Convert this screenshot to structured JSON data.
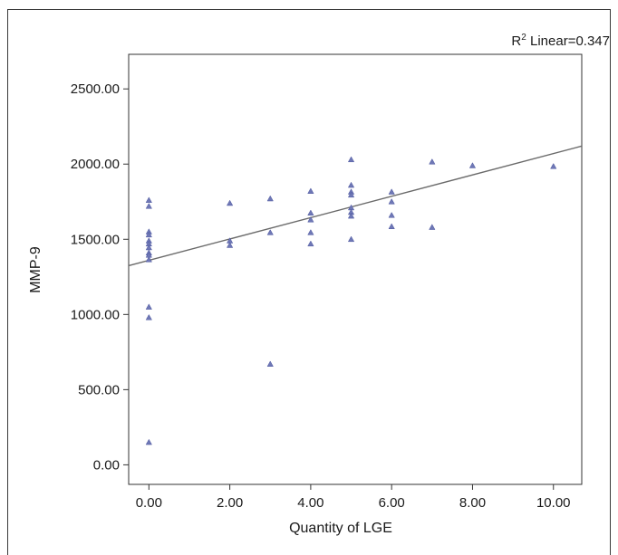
{
  "chart_data": {
    "type": "scatter",
    "title": "",
    "xlabel": "Quantity of LGE",
    "ylabel": "MMP-9",
    "xlim": [
      -0.5,
      10.7
    ],
    "ylim": [
      -130,
      2730
    ],
    "x_ticks": [
      "0.00",
      "2.00",
      "4.00",
      "6.00",
      "8.00",
      "10.00"
    ],
    "y_ticks": [
      "0.00",
      "500.00",
      "1000.00",
      "1500.00",
      "2000.00",
      "2500.00"
    ],
    "annotation": {
      "prefix": "R",
      "sup": "2",
      "text": " Linear=0.347"
    },
    "fit_line": {
      "intercept": 1360,
      "slope": 71
    },
    "marker_color": "#6f78b6",
    "line_color": "#6a6a6a",
    "points": [
      {
        "x": 0,
        "y": 1760
      },
      {
        "x": 0,
        "y": 1720
      },
      {
        "x": 0,
        "y": 1550
      },
      {
        "x": 0,
        "y": 1530
      },
      {
        "x": 0,
        "y": 1490
      },
      {
        "x": 0,
        "y": 1470
      },
      {
        "x": 0,
        "y": 1445
      },
      {
        "x": 0,
        "y": 1410
      },
      {
        "x": 0,
        "y": 1395
      },
      {
        "x": 0,
        "y": 1365
      },
      {
        "x": 0,
        "y": 1050
      },
      {
        "x": 0,
        "y": 980
      },
      {
        "x": 0,
        "y": 150
      },
      {
        "x": 2,
        "y": 1740
      },
      {
        "x": 2,
        "y": 1490
      },
      {
        "x": 2,
        "y": 1460
      },
      {
        "x": 3,
        "y": 1770
      },
      {
        "x": 3,
        "y": 1545
      },
      {
        "x": 3,
        "y": 670
      },
      {
        "x": 4,
        "y": 1820
      },
      {
        "x": 4,
        "y": 1675
      },
      {
        "x": 4,
        "y": 1630
      },
      {
        "x": 4,
        "y": 1545
      },
      {
        "x": 4,
        "y": 1470
      },
      {
        "x": 5,
        "y": 2030
      },
      {
        "x": 5,
        "y": 1860
      },
      {
        "x": 5,
        "y": 1815
      },
      {
        "x": 5,
        "y": 1795
      },
      {
        "x": 5,
        "y": 1710
      },
      {
        "x": 5,
        "y": 1680
      },
      {
        "x": 5,
        "y": 1655
      },
      {
        "x": 5,
        "y": 1500
      },
      {
        "x": 6,
        "y": 1815
      },
      {
        "x": 6,
        "y": 1750
      },
      {
        "x": 6,
        "y": 1660
      },
      {
        "x": 6,
        "y": 1585
      },
      {
        "x": 7,
        "y": 2015
      },
      {
        "x": 7,
        "y": 1580
      },
      {
        "x": 8,
        "y": 1990
      },
      {
        "x": 10,
        "y": 1985
      }
    ]
  }
}
